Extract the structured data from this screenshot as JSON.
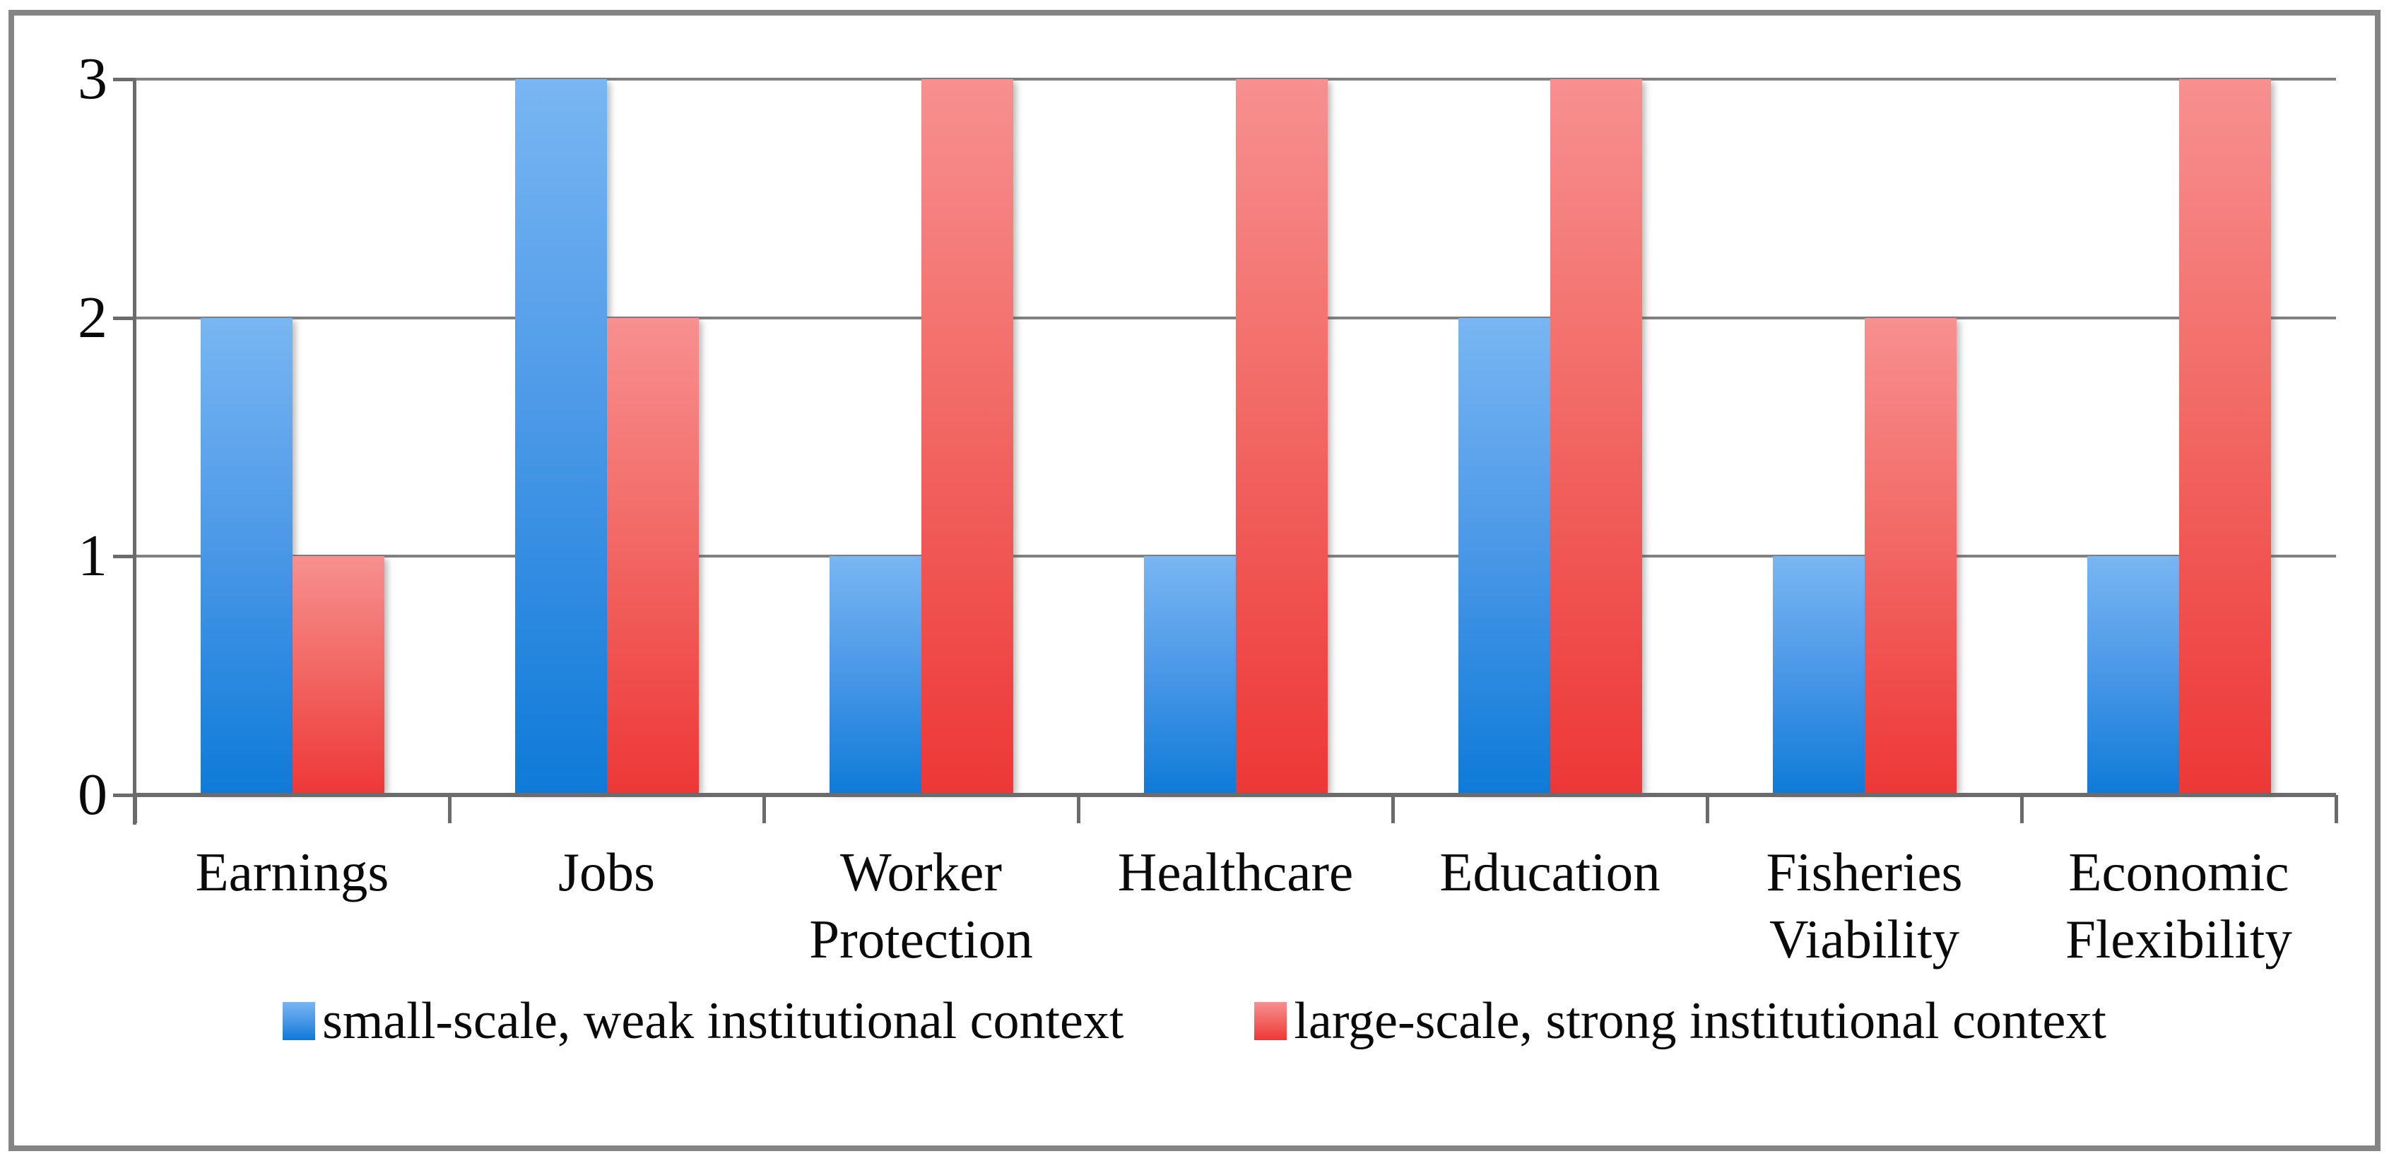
{
  "chart_data": {
    "type": "bar",
    "categories": [
      "Earnings",
      "Jobs",
      "Worker Protection",
      "Healthcare",
      "Education",
      "Fisheries Viability",
      "Economic Flexibility"
    ],
    "series": [
      {
        "name": "small-scale, weak institutional context",
        "color_top": "#79B6F2",
        "color_bottom": "#0E7AD8",
        "values": [
          2,
          3,
          1,
          1,
          2,
          1,
          1
        ]
      },
      {
        "name": "large-scale, strong institutional context",
        "color_top": "#F79090",
        "color_bottom": "#ED3737",
        "values": [
          1,
          2,
          3,
          3,
          3,
          2,
          3
        ]
      }
    ],
    "title": "",
    "xlabel": "",
    "ylabel": "",
    "ylim": [
      0,
      3
    ],
    "yticks": [
      "0",
      "1",
      "2",
      "3"
    ],
    "grid": true,
    "legend_position": "bottom"
  },
  "colors": {
    "gridline": "#808080",
    "axis": "#6b6b6b",
    "frame_border": "#848484",
    "text": "#0a0a0a",
    "background": "#ffffff"
  }
}
